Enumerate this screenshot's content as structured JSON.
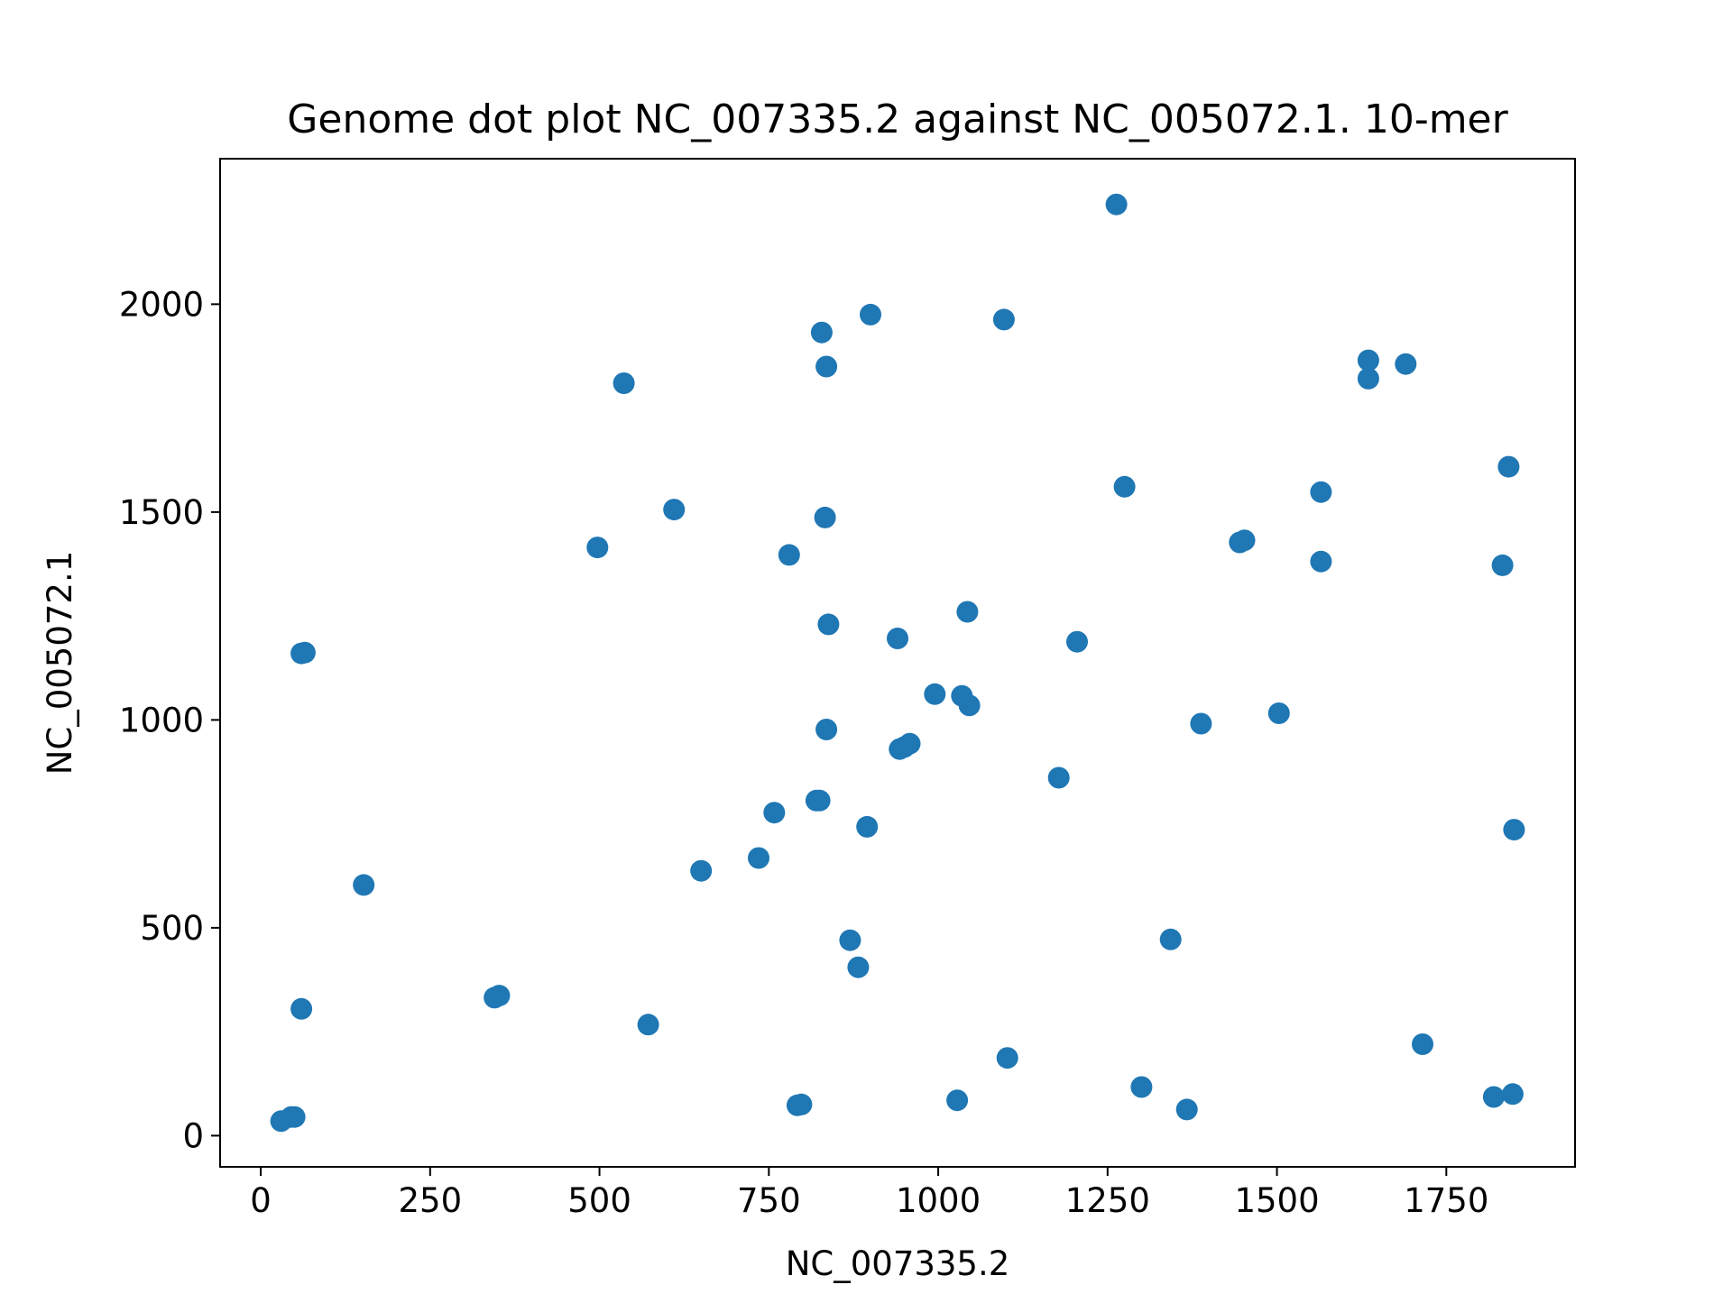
{
  "chart_data": {
    "type": "scatter",
    "title": "Genome dot plot NC_007335.2 against NC_005072.1. 10-mer",
    "xlabel": "NC_007335.2",
    "ylabel": "NC_005072.1",
    "xlim": [
      -60,
      1940
    ],
    "ylim": [
      -75,
      2350
    ],
    "x_ticks": [
      0,
      250,
      500,
      750,
      1000,
      1250,
      1500,
      1750
    ],
    "x_tick_labels": [
      "0",
      "250",
      "500",
      "750",
      "1000",
      "1250",
      "1500",
      "1750"
    ],
    "y_ticks": [
      0,
      500,
      1000,
      1500,
      2000
    ],
    "y_tick_labels": [
      "0",
      "500",
      "1000",
      "1500",
      "2000"
    ],
    "grid": false,
    "marker_color": "#1f77b4",
    "points": [
      {
        "x": 30,
        "y": 35
      },
      {
        "x": 45,
        "y": 45
      },
      {
        "x": 50,
        "y": 45
      },
      {
        "x": 60,
        "y": 305
      },
      {
        "x": 60,
        "y": 1160
      },
      {
        "x": 65,
        "y": 1162
      },
      {
        "x": 152,
        "y": 603
      },
      {
        "x": 345,
        "y": 332
      },
      {
        "x": 352,
        "y": 337
      },
      {
        "x": 497,
        "y": 1415
      },
      {
        "x": 536,
        "y": 1810
      },
      {
        "x": 572,
        "y": 267
      },
      {
        "x": 610,
        "y": 1506
      },
      {
        "x": 650,
        "y": 637
      },
      {
        "x": 735,
        "y": 668
      },
      {
        "x": 758,
        "y": 777
      },
      {
        "x": 780,
        "y": 1397
      },
      {
        "x": 792,
        "y": 73
      },
      {
        "x": 798,
        "y": 75
      },
      {
        "x": 820,
        "y": 806
      },
      {
        "x": 825,
        "y": 806
      },
      {
        "x": 828,
        "y": 1932
      },
      {
        "x": 833,
        "y": 1487
      },
      {
        "x": 835,
        "y": 1850
      },
      {
        "x": 835,
        "y": 977
      },
      {
        "x": 838,
        "y": 1230
      },
      {
        "x": 870,
        "y": 470
      },
      {
        "x": 882,
        "y": 405
      },
      {
        "x": 895,
        "y": 743
      },
      {
        "x": 900,
        "y": 1975
      },
      {
        "x": 940,
        "y": 1196
      },
      {
        "x": 943,
        "y": 930
      },
      {
        "x": 950,
        "y": 935
      },
      {
        "x": 958,
        "y": 943
      },
      {
        "x": 995,
        "y": 1062
      },
      {
        "x": 1028,
        "y": 85
      },
      {
        "x": 1035,
        "y": 1058
      },
      {
        "x": 1043,
        "y": 1260
      },
      {
        "x": 1046,
        "y": 1035
      },
      {
        "x": 1097,
        "y": 1963
      },
      {
        "x": 1102,
        "y": 187
      },
      {
        "x": 1178,
        "y": 861
      },
      {
        "x": 1205,
        "y": 1188
      },
      {
        "x": 1263,
        "y": 2240
      },
      {
        "x": 1275,
        "y": 1561
      },
      {
        "x": 1300,
        "y": 117
      },
      {
        "x": 1343,
        "y": 472
      },
      {
        "x": 1367,
        "y": 63
      },
      {
        "x": 1388,
        "y": 991
      },
      {
        "x": 1445,
        "y": 1427
      },
      {
        "x": 1452,
        "y": 1432
      },
      {
        "x": 1503,
        "y": 1016
      },
      {
        "x": 1565,
        "y": 1381
      },
      {
        "x": 1565,
        "y": 1548
      },
      {
        "x": 1635,
        "y": 1821
      },
      {
        "x": 1635,
        "y": 1865
      },
      {
        "x": 1690,
        "y": 1856
      },
      {
        "x": 1715,
        "y": 220
      },
      {
        "x": 1820,
        "y": 93
      },
      {
        "x": 1833,
        "y": 1372
      },
      {
        "x": 1842,
        "y": 1609
      },
      {
        "x": 1848,
        "y": 100
      },
      {
        "x": 1850,
        "y": 736
      }
    ]
  }
}
